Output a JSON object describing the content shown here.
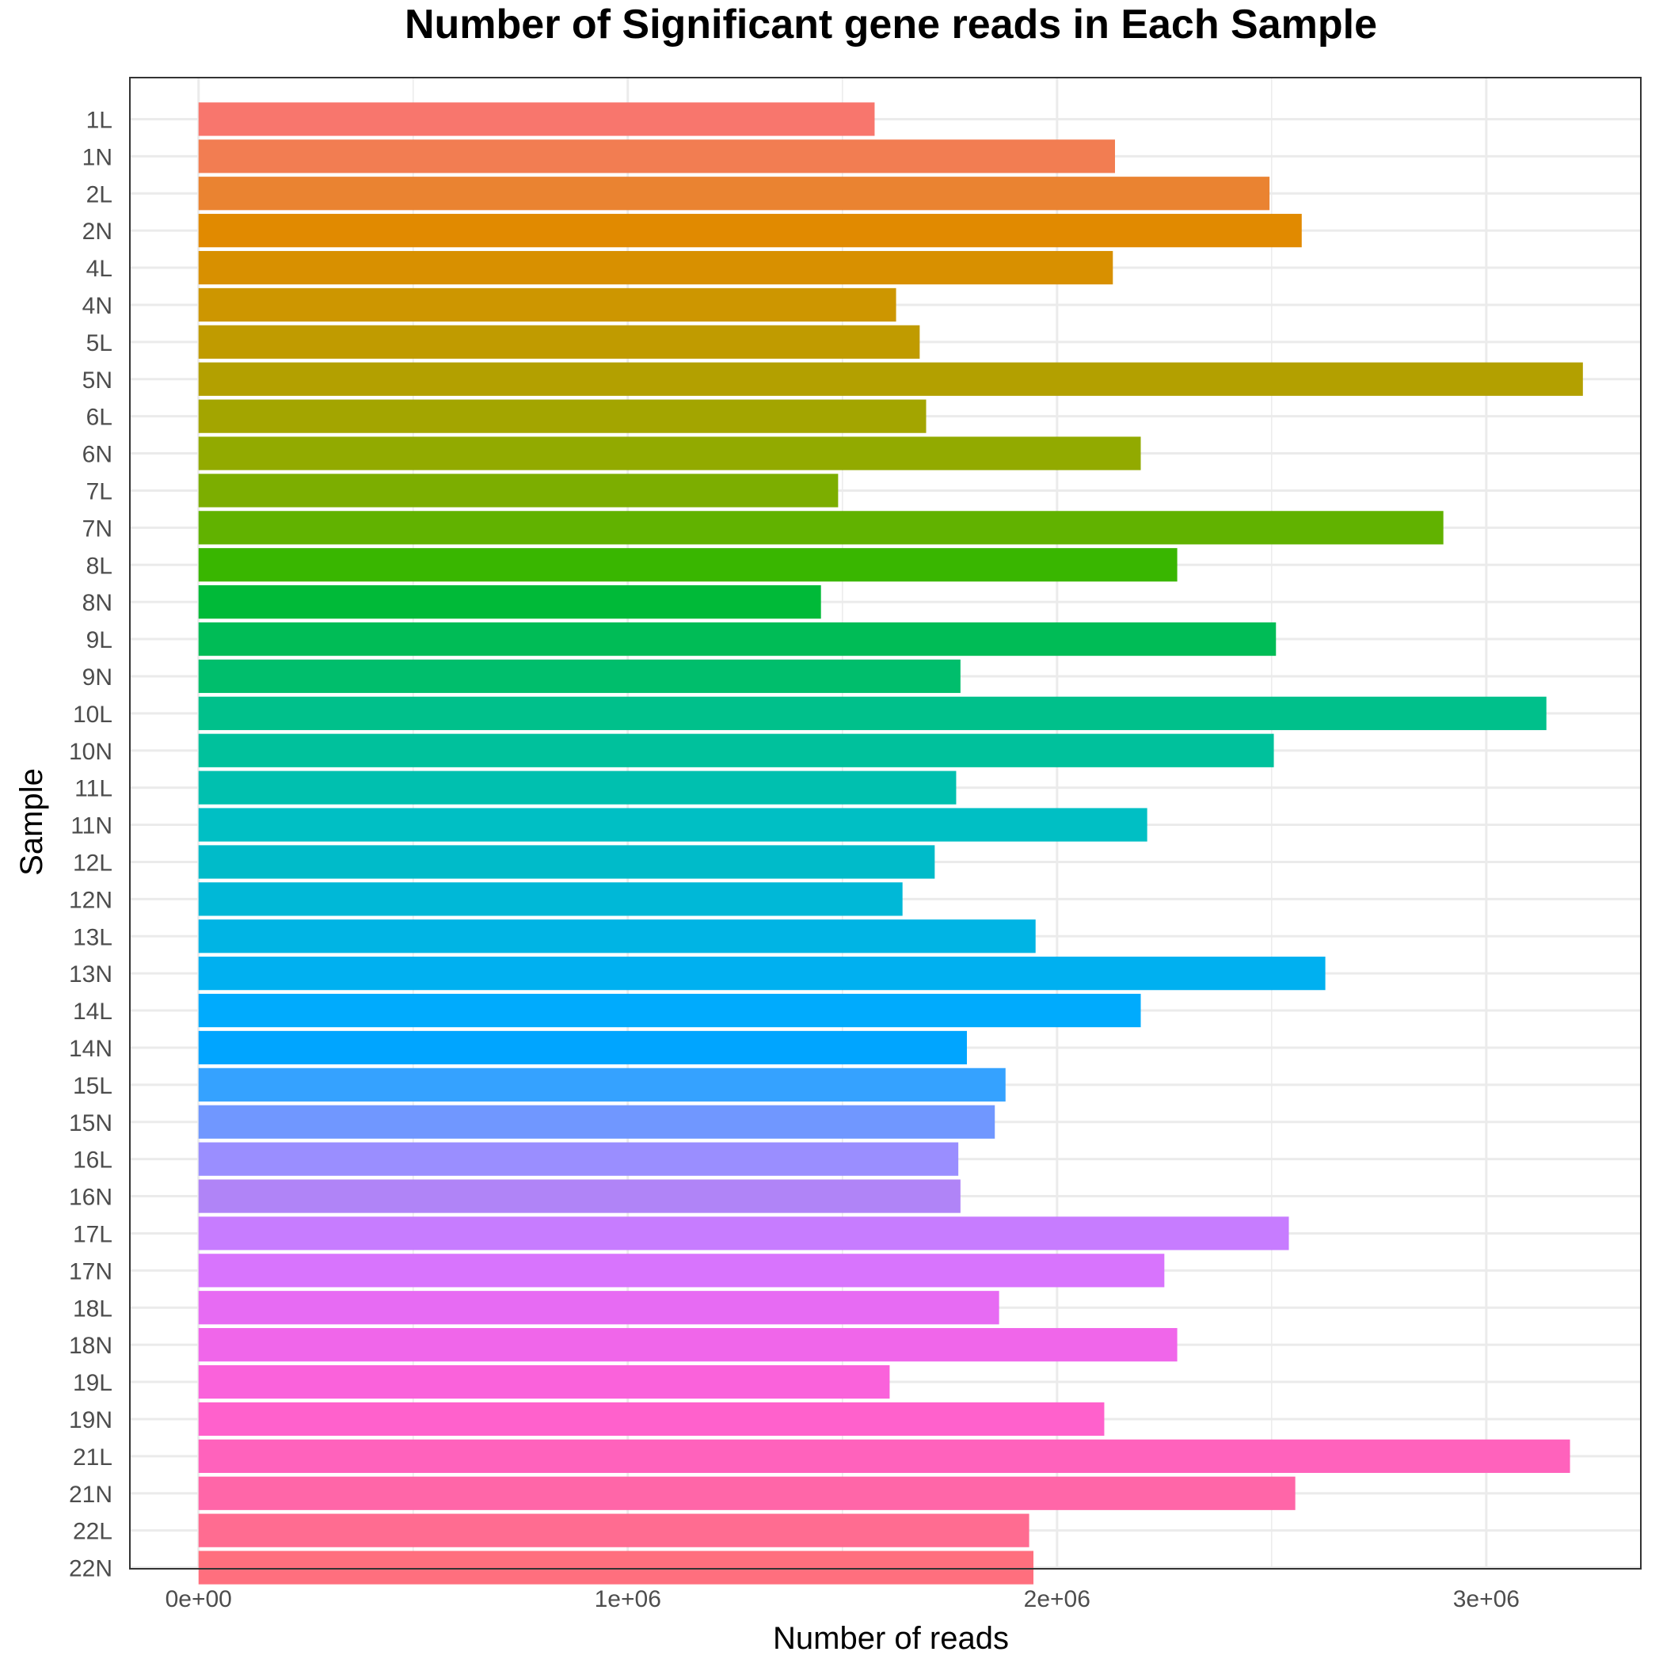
{
  "chart_data": {
    "type": "bar",
    "orientation": "horizontal",
    "title": "Number of Significant gene reads in Each Sample",
    "xlabel": "Number of reads",
    "ylabel": "Sample",
    "xlim": [
      -160000,
      3360000
    ],
    "x_ticks": [
      0,
      1000000,
      2000000,
      3000000
    ],
    "x_tick_labels": [
      "0e+00",
      "1e+06",
      "2e+06",
      "3e+06"
    ],
    "x_minor_ticks": [
      500000,
      1500000,
      2500000
    ],
    "grid": true,
    "legend": "none",
    "categories": [
      "1L",
      "1N",
      "2L",
      "2N",
      "4L",
      "4N",
      "5L",
      "5N",
      "6L",
      "6N",
      "7L",
      "7N",
      "8L",
      "8N",
      "9L",
      "9N",
      "10L",
      "10N",
      "11L",
      "11N",
      "12L",
      "12N",
      "13L",
      "13N",
      "14L",
      "14N",
      "15L",
      "15N",
      "16L",
      "16N",
      "17L",
      "17N",
      "18L",
      "18N",
      "19L",
      "19N",
      "21L",
      "21N",
      "22L",
      "22N"
    ],
    "values": [
      1575000,
      2135000,
      2495000,
      2570000,
      2130000,
      1625000,
      1680000,
      3225000,
      1695000,
      2195000,
      1490000,
      2900000,
      2280000,
      1450000,
      2510000,
      1775000,
      3140000,
      2505000,
      1765000,
      2210000,
      1715000,
      1640000,
      1950000,
      2625000,
      2195000,
      1790000,
      1880000,
      1855000,
      1770000,
      1775000,
      2540000,
      2250000,
      1865000,
      2280000,
      1610000,
      2110000,
      3195000,
      2555000,
      1935000,
      1945000
    ],
    "colors": [
      "#F8766D",
      "#F27D52",
      "#EA8331",
      "#E18A00",
      "#D89000",
      "#CD9600",
      "#C09B00",
      "#B3A000",
      "#A3A500",
      "#92AA00",
      "#7CAE00",
      "#61B200",
      "#39B600",
      "#00BA38",
      "#00BC56",
      "#00BE6C",
      "#00C08B",
      "#00C19C",
      "#00C0AF",
      "#00BFC4",
      "#00BBC9",
      "#00B8D7",
      "#00B4E4",
      "#00B0F0",
      "#00ABFD",
      "#00A5FF",
      "#35A2FF",
      "#7097FF",
      "#9A8EFF",
      "#B084F7",
      "#C77CFF",
      "#D874FD",
      "#E76BF3",
      "#F066EA",
      "#FA62DB",
      "#FF61CC",
      "#FF62BC",
      "#FF66A8",
      "#FF6C91",
      "#FF6F7E"
    ]
  }
}
